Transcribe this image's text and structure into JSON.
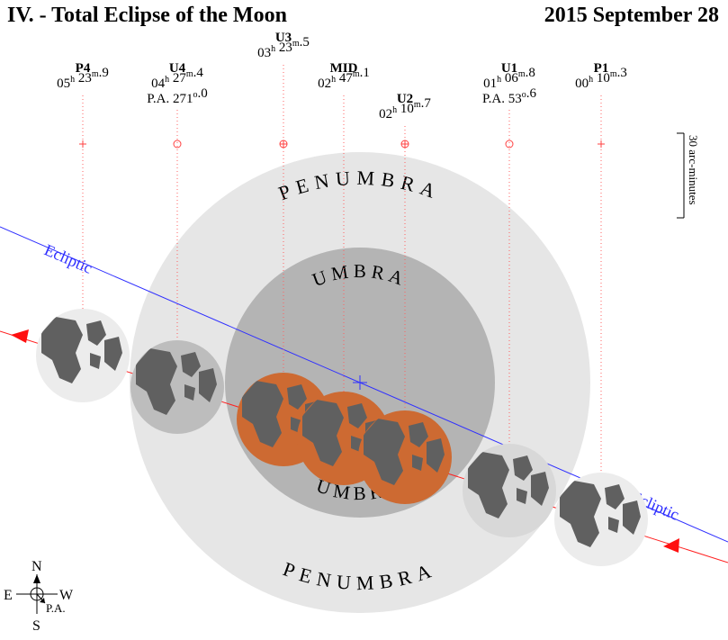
{
  "header": {
    "title": "IV. - Total Eclipse of the Moon",
    "date": "2015 September 28"
  },
  "contacts": [
    {
      "key": "p4",
      "label": "P4",
      "h": "05",
      "m": "23",
      "frac": "9"
    },
    {
      "key": "u4",
      "label": "U4",
      "h": "04",
      "m": "27",
      "frac": "4",
      "pa_prefix": "P.A. ",
      "pa_int": "271",
      "pa_frac": "0"
    },
    {
      "key": "u3",
      "label": "U3",
      "h": "03",
      "m": "23",
      "frac": "5"
    },
    {
      "key": "mid",
      "label": "MID",
      "h": "02",
      "m": "47",
      "frac": "1"
    },
    {
      "key": "u2",
      "label": "U2",
      "h": "02",
      "m": "10",
      "frac": "7"
    },
    {
      "key": "u1",
      "label": "U1",
      "h": "01",
      "m": "06",
      "frac": "8",
      "pa_prefix": "P.A. ",
      "pa_int": "53",
      "pa_frac": "6"
    },
    {
      "key": "p1",
      "label": "P1",
      "h": "00",
      "m": "10",
      "frac": "3"
    }
  ],
  "units": {
    "hour": "h",
    "minute": "m",
    "degree": "o"
  },
  "labels": {
    "penumbra": "PENUMBRA",
    "umbra": "UMBRA",
    "ecliptic": "Ecliptic",
    "scale": "30 arc-minutes"
  },
  "compass": {
    "north": "N",
    "south": "S",
    "east": "E",
    "west": "W",
    "pa": "P.A."
  },
  "colors": {
    "penumbra": "#e6e6e6",
    "umbra": "#b4b4b4",
    "ecliptic": "#3030ff",
    "path": "#ff2020",
    "tick": "#ff4040",
    "eclipsed_moon": "#cd6a32",
    "moon_disk": "#ececec",
    "maria": "#606060"
  }
}
